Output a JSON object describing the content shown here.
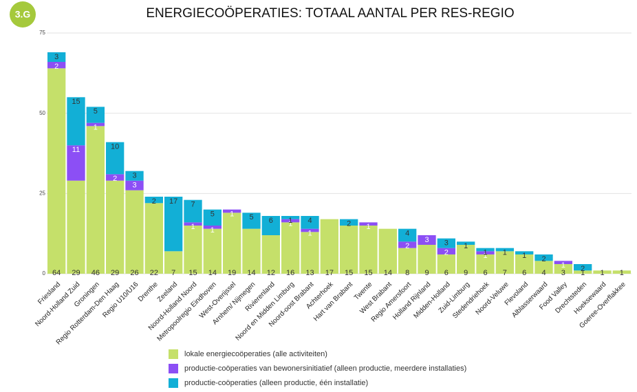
{
  "badge": "3.G",
  "chart_data": {
    "type": "stacked_bar",
    "title": "ENERGIECOÖPERATIES: TOTAAL AANTAL PER RES-REGIO",
    "categories": [
      "Friesland",
      "Noord-Holland Zuid",
      "Groningen",
      "Regio Rotterdam-Den Haag",
      "Regio U10/U16",
      "Drenthe",
      "Zeeland",
      "Noord-Holland Noord",
      "Metropoolregio Eindhoven",
      "West-Overijssel",
      "Arnhem/ Nijmegen",
      "Rivierenland",
      "Noord en Midden Limburg",
      "Noord-oost Brabant",
      "Achterhoek",
      "Hart van Brabant",
      "Twente",
      "West Brabant",
      "Regio Amersfoort",
      "Holland Rijnland",
      "Midden-Holland",
      "Zuid-Limburg",
      "Stedendriehoek",
      "Noord-Veluwe",
      "Flevoland",
      "Alblasserwaard",
      "Food Valley",
      "Drechtsteden",
      "Hoeksewaard",
      "Goeree-Overflakkee"
    ],
    "series": [
      {
        "name": "lokale energiecoöperaties (alle activiteiten)",
        "color": "#c5e06a",
        "values": [
          64,
          29,
          46,
          29,
          26,
          22,
          7,
          15,
          14,
          19,
          14,
          12,
          16,
          13,
          17,
          15,
          15,
          14,
          8,
          9,
          6,
          9,
          6,
          7,
          6,
          4,
          3,
          1,
          1,
          1
        ]
      },
      {
        "name": "productie-coöperaties van  bewonersinitiatief  (alleen productie, meerdere installaties)",
        "color": "#8c4ff5",
        "values": [
          2,
          11,
          1,
          2,
          3,
          0,
          0,
          1,
          1,
          1,
          0,
          0,
          1,
          1,
          0,
          0,
          1,
          0,
          2,
          3,
          2,
          0,
          1,
          0,
          0,
          0,
          1,
          0,
          0,
          0
        ]
      },
      {
        "name": "productie-coöperaties  (alleen productie, één installatie)",
        "color": "#12afd6",
        "values": [
          3,
          15,
          5,
          10,
          3,
          2,
          17,
          7,
          5,
          0,
          5,
          6,
          1,
          4,
          0,
          2,
          0,
          0,
          4,
          0,
          3,
          1,
          1,
          1,
          1,
          2,
          0,
          2,
          0,
          0
        ]
      }
    ],
    "ylim": [
      0,
      75
    ],
    "yticks": [
      0,
      25,
      50,
      75
    ],
    "grid": true,
    "legend": "bottom"
  }
}
